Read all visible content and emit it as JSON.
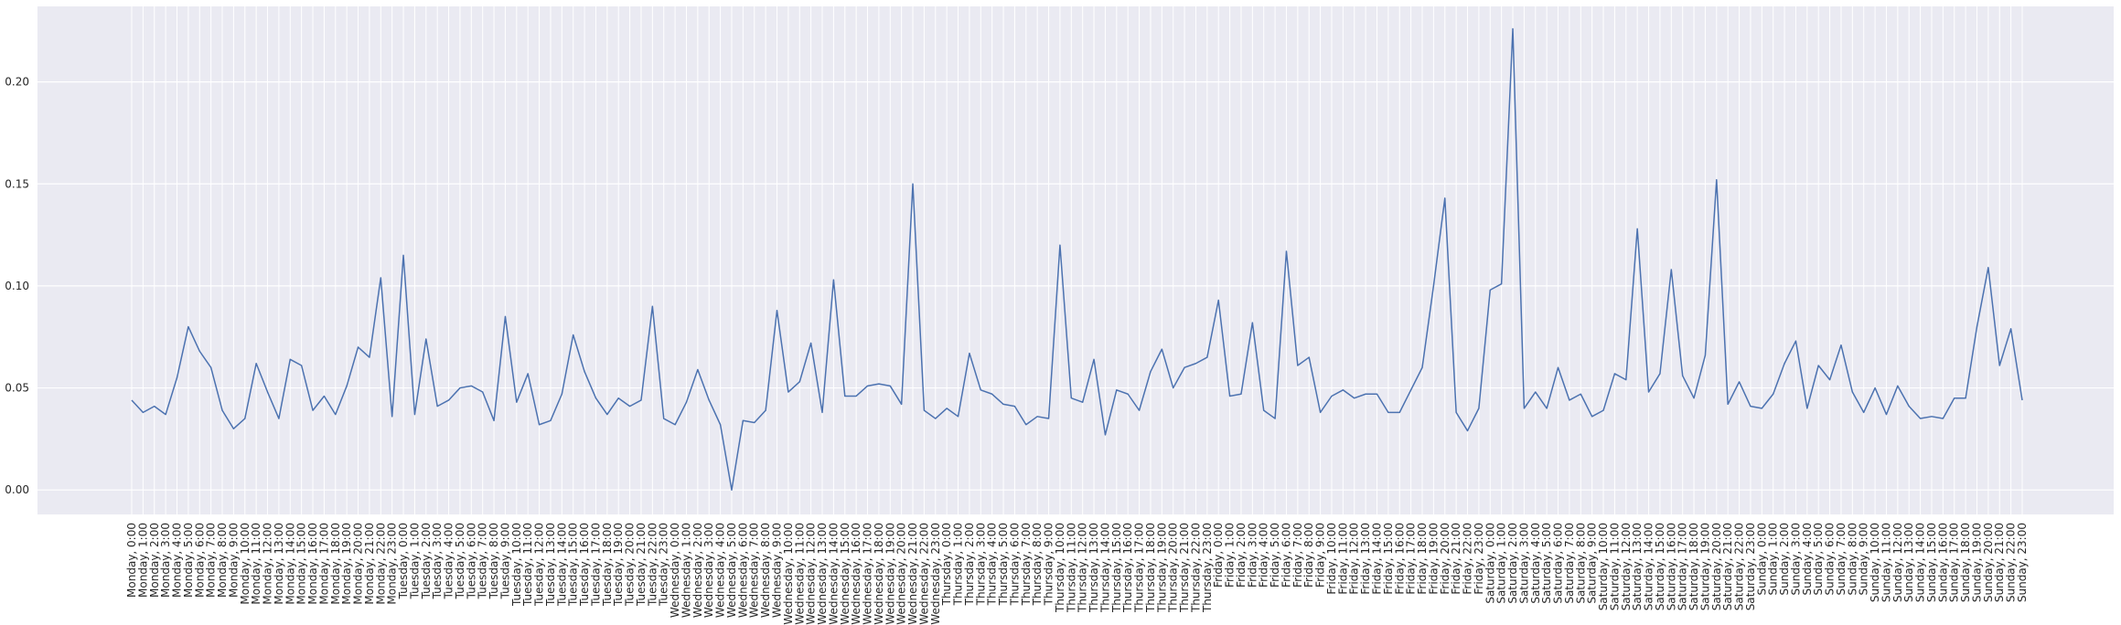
{
  "chart_data": {
    "type": "line",
    "title": "",
    "xlabel": "",
    "ylabel": "",
    "ylim": [
      -0.012,
      0.237
    ],
    "y_ticks": [
      0.0,
      0.05,
      0.1,
      0.15,
      0.2
    ],
    "y_tick_labels": [
      "0.00",
      "0.05",
      "0.10",
      "0.15",
      "0.20"
    ],
    "grid": true,
    "colors": {
      "background": "#eaeaf2",
      "grid": "#ffffff",
      "line": "#4c72b0"
    },
    "categories": [
      "Monday, 0:00",
      "Monday, 1:00",
      "Monday, 2:00",
      "Monday, 3:00",
      "Monday, 4:00",
      "Monday, 5:00",
      "Monday, 6:00",
      "Monday, 7:00",
      "Monday, 8:00",
      "Monday, 9:00",
      "Monday, 10:00",
      "Monday, 11:00",
      "Monday, 12:00",
      "Monday, 13:00",
      "Monday, 14:00",
      "Monday, 15:00",
      "Monday, 16:00",
      "Monday, 17:00",
      "Monday, 18:00",
      "Monday, 19:00",
      "Monday, 20:00",
      "Monday, 21:00",
      "Monday, 22:00",
      "Monday, 23:00",
      "Tuesday, 0:00",
      "Tuesday, 1:00",
      "Tuesday, 2:00",
      "Tuesday, 3:00",
      "Tuesday, 4:00",
      "Tuesday, 5:00",
      "Tuesday, 6:00",
      "Tuesday, 7:00",
      "Tuesday, 8:00",
      "Tuesday, 9:00",
      "Tuesday, 10:00",
      "Tuesday, 11:00",
      "Tuesday, 12:00",
      "Tuesday, 13:00",
      "Tuesday, 14:00",
      "Tuesday, 15:00",
      "Tuesday, 16:00",
      "Tuesday, 17:00",
      "Tuesday, 18:00",
      "Tuesday, 19:00",
      "Tuesday, 20:00",
      "Tuesday, 21:00",
      "Tuesday, 22:00",
      "Tuesday, 23:00",
      "Wednesday, 0:00",
      "Wednesday, 1:00",
      "Wednesday, 2:00",
      "Wednesday, 3:00",
      "Wednesday, 4:00",
      "Wednesday, 5:00",
      "Wednesday, 6:00",
      "Wednesday, 7:00",
      "Wednesday, 8:00",
      "Wednesday, 9:00",
      "Wednesday, 10:00",
      "Wednesday, 11:00",
      "Wednesday, 12:00",
      "Wednesday, 13:00",
      "Wednesday, 14:00",
      "Wednesday, 15:00",
      "Wednesday, 16:00",
      "Wednesday, 17:00",
      "Wednesday, 18:00",
      "Wednesday, 19:00",
      "Wednesday, 20:00",
      "Wednesday, 21:00",
      "Wednesday, 22:00",
      "Wednesday, 23:00",
      "Thursday, 0:00",
      "Thursday, 1:00",
      "Thursday, 2:00",
      "Thursday, 3:00",
      "Thursday, 4:00",
      "Thursday, 5:00",
      "Thursday, 6:00",
      "Thursday, 7:00",
      "Thursday, 8:00",
      "Thursday, 9:00",
      "Thursday, 10:00",
      "Thursday, 11:00",
      "Thursday, 12:00",
      "Thursday, 13:00",
      "Thursday, 14:00",
      "Thursday, 15:00",
      "Thursday, 16:00",
      "Thursday, 17:00",
      "Thursday, 18:00",
      "Thursday, 19:00",
      "Thursday, 20:00",
      "Thursday, 21:00",
      "Thursday, 22:00",
      "Thursday, 23:00",
      "Friday, 0:00",
      "Friday, 1:00",
      "Friday, 2:00",
      "Friday, 3:00",
      "Friday, 4:00",
      "Friday, 5:00",
      "Friday, 6:00",
      "Friday, 7:00",
      "Friday, 8:00",
      "Friday, 9:00",
      "Friday, 10:00",
      "Friday, 11:00",
      "Friday, 12:00",
      "Friday, 13:00",
      "Friday, 14:00",
      "Friday, 15:00",
      "Friday, 16:00",
      "Friday, 17:00",
      "Friday, 18:00",
      "Friday, 19:00",
      "Friday, 20:00",
      "Friday, 21:00",
      "Friday, 22:00",
      "Friday, 23:00",
      "Saturday, 0:00",
      "Saturday, 1:00",
      "Saturday, 2:00",
      "Saturday, 3:00",
      "Saturday, 4:00",
      "Saturday, 5:00",
      "Saturday, 6:00",
      "Saturday, 7:00",
      "Saturday, 8:00",
      "Saturday, 9:00",
      "Saturday, 10:00",
      "Saturday, 11:00",
      "Saturday, 12:00",
      "Saturday, 13:00",
      "Saturday, 14:00",
      "Saturday, 15:00",
      "Saturday, 16:00",
      "Saturday, 17:00",
      "Saturday, 18:00",
      "Saturday, 19:00",
      "Saturday, 20:00",
      "Saturday, 21:00",
      "Saturday, 22:00",
      "Saturday, 23:00",
      "Sunday, 0:00",
      "Sunday, 1:00",
      "Sunday, 2:00",
      "Sunday, 3:00",
      "Sunday, 4:00",
      "Sunday, 5:00",
      "Sunday, 6:00",
      "Sunday, 7:00",
      "Sunday, 8:00",
      "Sunday, 9:00",
      "Sunday, 10:00",
      "Sunday, 11:00",
      "Sunday, 12:00",
      "Sunday, 13:00",
      "Sunday, 14:00",
      "Sunday, 15:00",
      "Sunday, 16:00",
      "Sunday, 17:00",
      "Sunday, 18:00",
      "Sunday, 19:00",
      "Sunday, 20:00",
      "Sunday, 21:00",
      "Sunday, 22:00",
      "Sunday, 23:00"
    ],
    "values": [
      0.044,
      0.038,
      0.041,
      0.037,
      0.055,
      0.08,
      0.068,
      0.06,
      0.039,
      0.03,
      0.035,
      0.062,
      0.048,
      0.035,
      0.064,
      0.061,
      0.039,
      0.046,
      0.037,
      0.051,
      0.07,
      0.065,
      0.104,
      0.036,
      0.115,
      0.037,
      0.074,
      0.041,
      0.044,
      0.05,
      0.051,
      0.048,
      0.034,
      0.085,
      0.043,
      0.057,
      0.032,
      0.034,
      0.047,
      0.076,
      0.058,
      0.045,
      0.037,
      0.045,
      0.041,
      0.044,
      0.09,
      0.035,
      0.032,
      0.043,
      0.059,
      0.044,
      0.032,
      0.0,
      0.034,
      0.033,
      0.039,
      0.088,
      0.048,
      0.053,
      0.072,
      0.038,
      0.103,
      0.046,
      0.046,
      0.051,
      0.052,
      0.051,
      0.042,
      0.15,
      0.039,
      0.035,
      0.04,
      0.036,
      0.067,
      0.049,
      0.047,
      0.042,
      0.041,
      0.032,
      0.036,
      0.035,
      0.12,
      0.045,
      0.043,
      0.064,
      0.027,
      0.049,
      0.047,
      0.039,
      0.058,
      0.069,
      0.05,
      0.06,
      0.062,
      0.065,
      0.093,
      0.046,
      0.047,
      0.082,
      0.039,
      0.035,
      0.117,
      0.061,
      0.065,
      0.038,
      0.046,
      0.049,
      0.045,
      0.047,
      0.047,
      0.038,
      0.038,
      0.049,
      0.06,
      0.1,
      0.143,
      0.038,
      0.029,
      0.04,
      0.098,
      0.101,
      0.226,
      0.04,
      0.048,
      0.04,
      0.06,
      0.044,
      0.047,
      0.036,
      0.039,
      0.057,
      0.054,
      0.128,
      0.048,
      0.057,
      0.108,
      0.056,
      0.045,
      0.066,
      0.152,
      0.042,
      0.053,
      0.041,
      0.04,
      0.047,
      0.062,
      0.073,
      0.04,
      0.061,
      0.054,
      0.071,
      0.048,
      0.038,
      0.05,
      0.037,
      0.051,
      0.041,
      0.035,
      0.036,
      0.035,
      0.045,
      0.045,
      0.08,
      0.109,
      0.061,
      0.079,
      0.044
    ]
  }
}
